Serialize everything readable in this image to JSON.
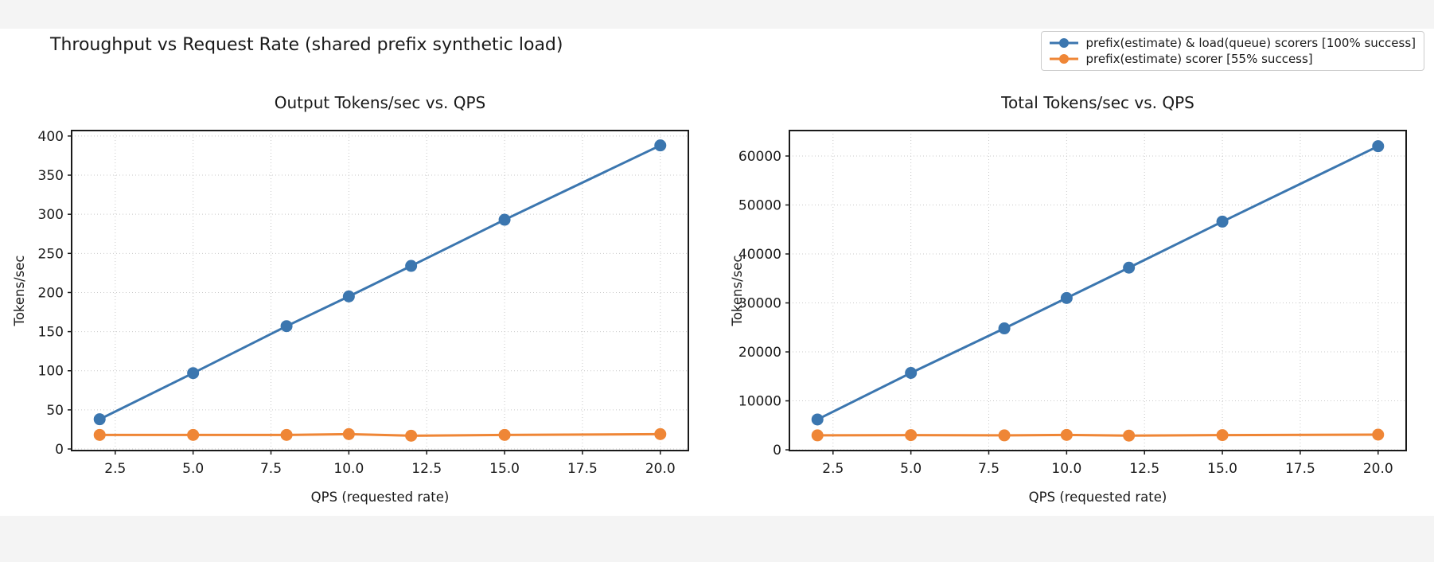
{
  "page": {
    "background_color": "#f4f4f4",
    "figure_background_color": "#ffffff"
  },
  "suptitle": "Throughput vs Request Rate (shared prefix synthetic load)",
  "legend": {
    "items": [
      {
        "label": "prefix(estimate) & load(queue) scorers [100% success]",
        "color": "#3b76af",
        "marker": "circle"
      },
      {
        "label": "prefix(estimate) scorer [55% success]",
        "color": "#ef8636",
        "marker": "circle"
      }
    ],
    "position": "top-right",
    "border_color": "#cccccc"
  },
  "chart_data": [
    {
      "type": "line",
      "title": "Output Tokens/sec vs. QPS",
      "xlabel": "QPS (requested rate)",
      "ylabel": "Tokens/sec",
      "x": [
        2,
        5,
        8,
        10,
        12,
        15,
        20
      ],
      "series": [
        {
          "name": "prefix(estimate) & load(queue) scorers [100% success]",
          "color": "#3b76af",
          "values": [
            38,
            97,
            157,
            195,
            234,
            293,
            388
          ]
        },
        {
          "name": "prefix(estimate) scorer [55% success]",
          "color": "#ef8636",
          "values": [
            18,
            18,
            18,
            19,
            17,
            18,
            19
          ]
        }
      ],
      "xlim": [
        1.1,
        20.9
      ],
      "ylim": [
        -2,
        407
      ],
      "xtick_labels": [
        "2.5",
        "5.0",
        "7.5",
        "10.0",
        "12.5",
        "15.0",
        "17.5",
        "20.0"
      ],
      "xtick_values": [
        2.5,
        5.0,
        7.5,
        10.0,
        12.5,
        15.0,
        17.5,
        20.0
      ],
      "ytick_labels": [
        "0",
        "50",
        "100",
        "150",
        "200",
        "250",
        "300",
        "350",
        "400"
      ],
      "ytick_values": [
        0,
        50,
        100,
        150,
        200,
        250,
        300,
        350,
        400
      ],
      "grid": true,
      "legend_position": "figure-top-right"
    },
    {
      "type": "line",
      "title": "Total Tokens/sec vs. QPS",
      "xlabel": "QPS (requested rate)",
      "ylabel": "Tokens/sec",
      "x": [
        2,
        5,
        8,
        10,
        12,
        15,
        20
      ],
      "series": [
        {
          "name": "prefix(estimate) & load(queue) scorers [100% success]",
          "color": "#3b76af",
          "values": [
            6200,
            15700,
            24800,
            31000,
            37200,
            46600,
            62000
          ]
        },
        {
          "name": "prefix(estimate) scorer [55% success]",
          "color": "#ef8636",
          "values": [
            2950,
            3000,
            2950,
            3050,
            2900,
            3000,
            3100
          ]
        }
      ],
      "xlim": [
        1.1,
        20.9
      ],
      "ylim": [
        -150,
        65200
      ],
      "xtick_labels": [
        "2.5",
        "5.0",
        "7.5",
        "10.0",
        "12.5",
        "15.0",
        "17.5",
        "20.0"
      ],
      "xtick_values": [
        2.5,
        5.0,
        7.5,
        10.0,
        12.5,
        15.0,
        17.5,
        20.0
      ],
      "ytick_labels": [
        "0",
        "10000",
        "20000",
        "30000",
        "40000",
        "50000",
        "60000"
      ],
      "ytick_values": [
        0,
        10000,
        20000,
        30000,
        40000,
        50000,
        60000
      ],
      "grid": true,
      "legend_position": "figure-top-right"
    }
  ],
  "style": {
    "grid_color": "#c9c9c9",
    "frame_color": "#1a1a1a",
    "line_width": 3,
    "marker_radius": 7.5
  }
}
